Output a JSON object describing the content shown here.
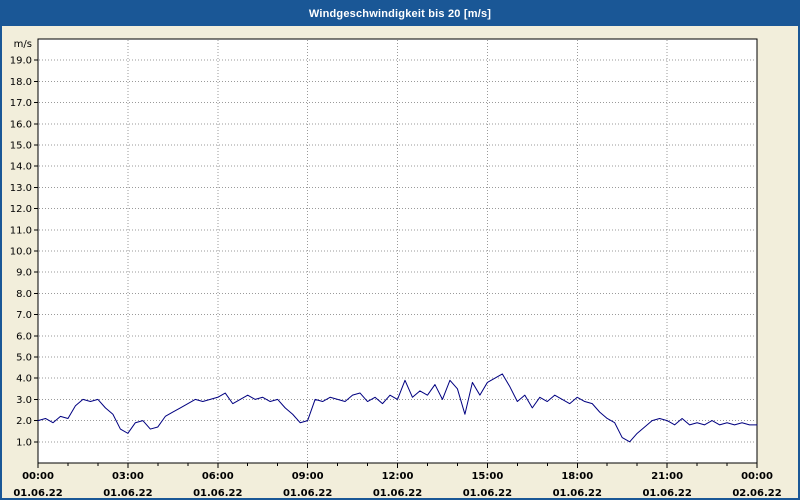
{
  "title": "Windgeschwindigkeit bis 20 [m/s]",
  "colors": {
    "titlebar": "#1a5796",
    "window_background": "#f2eedb",
    "plot_background": "#ffffff",
    "line": "#000080",
    "grid": "#9a9a9a",
    "axis": "#000000"
  },
  "chart_data": {
    "type": "line",
    "title": "Windgeschwindigkeit bis 20 [m/s]",
    "ylabel": "m/s",
    "xlabel": "",
    "ylim": [
      0,
      20
    ],
    "grid": true,
    "legend_position": "none",
    "y_tick_labels": [
      "1.0",
      "2.0",
      "3.0",
      "4.0",
      "5.0",
      "6.0",
      "7.0",
      "8.0",
      "9.0",
      "10.0",
      "11.0",
      "12.0",
      "13.0",
      "14.0",
      "15.0",
      "16.0",
      "17.0",
      "18.0",
      "19.0"
    ],
    "x_ticks": [
      {
        "time": "00:00",
        "date": "01.06.22"
      },
      {
        "time": "03:00",
        "date": "01.06.22"
      },
      {
        "time": "06:00",
        "date": "01.06.22"
      },
      {
        "time": "09:00",
        "date": "01.06.22"
      },
      {
        "time": "12:00",
        "date": "01.06.22"
      },
      {
        "time": "15:00",
        "date": "01.06.22"
      },
      {
        "time": "18:00",
        "date": "01.06.22"
      },
      {
        "time": "21:00",
        "date": "01.06.22"
      },
      {
        "time": "00:00",
        "date": "02.06.22"
      }
    ],
    "interval_minutes": 15,
    "x_start": "01.06.22 00:00",
    "x_end": "02.06.22 00:00",
    "series": [
      {
        "name": "Windgeschwindigkeit",
        "unit": "m/s",
        "values": [
          2.0,
          2.1,
          1.9,
          2.2,
          2.1,
          2.7,
          3.0,
          2.9,
          3.0,
          2.6,
          2.3,
          1.6,
          1.4,
          1.9,
          2.0,
          1.6,
          1.7,
          2.2,
          2.4,
          2.6,
          2.8,
          3.0,
          2.9,
          3.0,
          3.1,
          3.3,
          2.8,
          3.0,
          3.2,
          3.0,
          3.1,
          2.9,
          3.0,
          2.6,
          2.3,
          1.9,
          2.0,
          3.0,
          2.9,
          3.1,
          3.0,
          2.9,
          3.2,
          3.3,
          2.9,
          3.1,
          2.8,
          3.2,
          3.0,
          3.9,
          3.1,
          3.4,
          3.2,
          3.7,
          3.0,
          3.9,
          3.5,
          2.3,
          3.8,
          3.2,
          3.8,
          4.0,
          4.2,
          3.6,
          2.9,
          3.2,
          2.6,
          3.1,
          2.9,
          3.2,
          3.0,
          2.8,
          3.1,
          2.9,
          2.8,
          2.4,
          2.1,
          1.9,
          1.2,
          1.0,
          1.4,
          1.7,
          2.0,
          2.1,
          2.0,
          1.8,
          2.1,
          1.8,
          1.9,
          1.8,
          2.0,
          1.8,
          1.9,
          1.8,
          1.9,
          1.8,
          1.8
        ]
      }
    ]
  }
}
